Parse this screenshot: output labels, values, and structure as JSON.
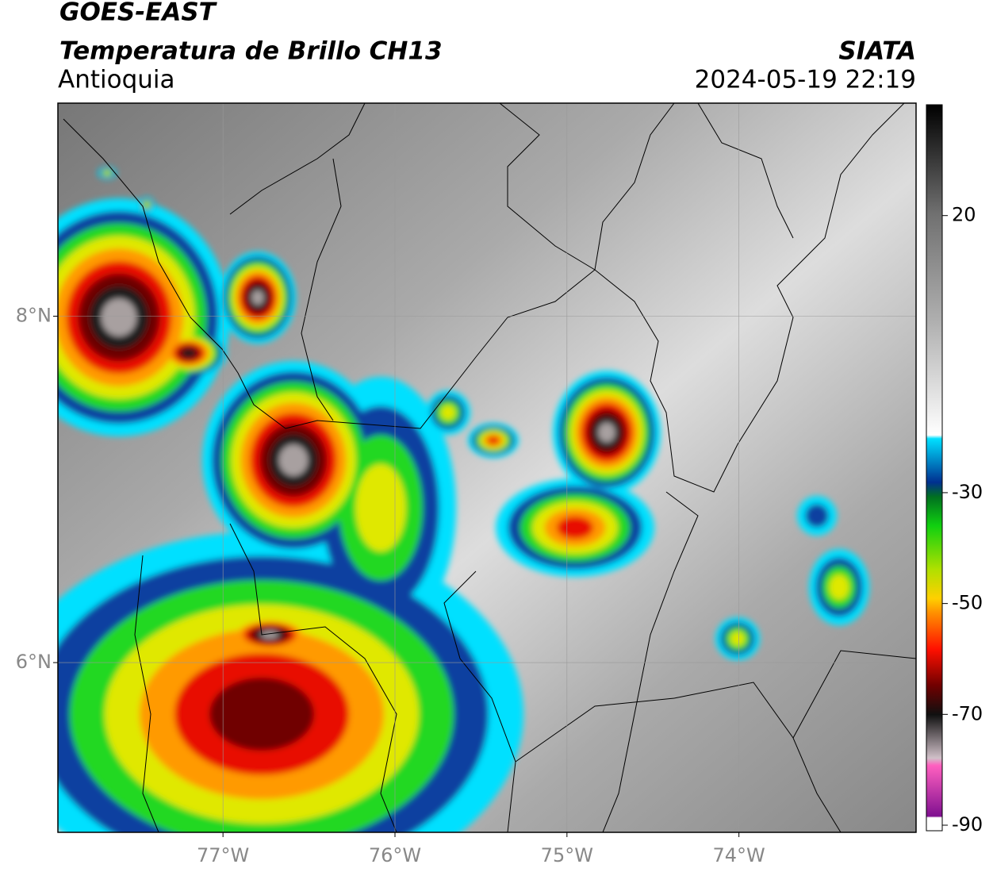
{
  "header": {
    "title": "GOES-EAST",
    "subtitle": "Temperatura de Brillo CH13",
    "region": "Antioquia",
    "source": "SIATA",
    "datetime": "2024-05-19 22:19"
  },
  "map": {
    "xlim": [
      -77.96,
      -72.97
    ],
    "ylim": [
      5.02,
      9.23
    ],
    "xticks": [
      {
        "value": -77,
        "label": "77°W"
      },
      {
        "value": -76,
        "label": "76°W"
      },
      {
        "value": -75,
        "label": "75°W"
      },
      {
        "value": -74,
        "label": "74°W"
      }
    ],
    "yticks": [
      {
        "value": 8,
        "label": "8°N"
      },
      {
        "value": 6,
        "label": "6°N"
      }
    ]
  },
  "colorbar": {
    "lim": [
      -91,
      40
    ],
    "ticks": [
      20,
      -30,
      -50,
      -70,
      -90
    ]
  }
}
